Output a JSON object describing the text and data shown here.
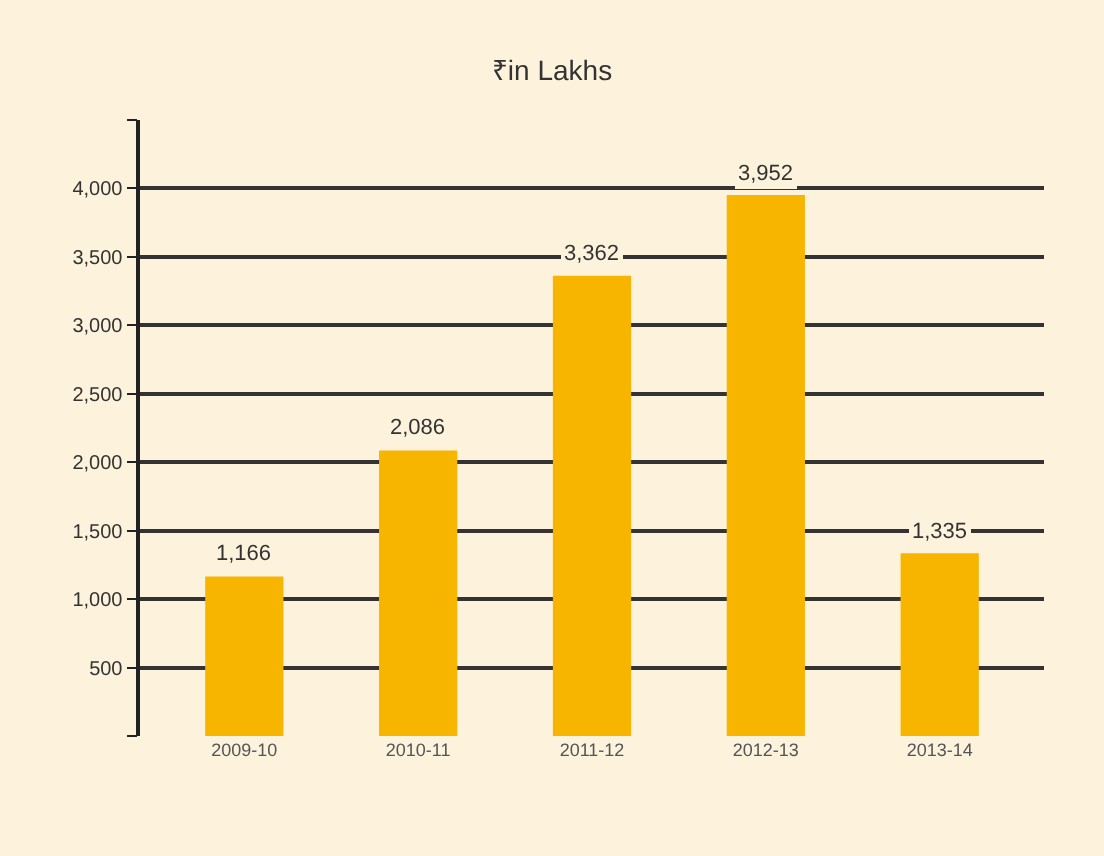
{
  "chart_data": {
    "type": "bar",
    "title": "₹in Lakhs",
    "categories": [
      "2009-10",
      "2010-11",
      "2011-12",
      "2012-13",
      "2013-14"
    ],
    "values": [
      1166,
      2086,
      3362,
      3952,
      1335
    ],
    "value_labels": [
      "1,166",
      "2,086",
      "3,362",
      "3,952",
      "1,335"
    ],
    "color": "#f7b500",
    "ylim": [
      0,
      4500
    ],
    "yticks": [
      {
        "value": 0,
        "label": null
      },
      {
        "value": 500,
        "label": "500"
      },
      {
        "value": 1000,
        "label": "1,000"
      },
      {
        "value": 1500,
        "label": "1,500"
      },
      {
        "value": 2000,
        "label": "2,000"
      },
      {
        "value": 2500,
        "label": "2,500"
      },
      {
        "value": 3000,
        "label": "3,000"
      },
      {
        "value": 3500,
        "label": "3,500"
      },
      {
        "value": 4000,
        "label": "4,000"
      },
      {
        "value": 4500,
        "label": null
      }
    ],
    "grid": "y",
    "legend": false
  }
}
